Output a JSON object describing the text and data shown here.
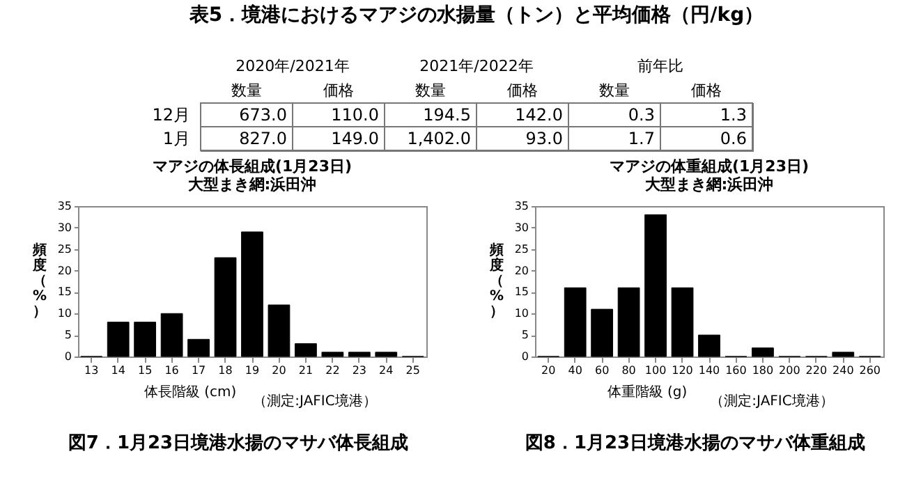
{
  "chart_data": [
    {
      "type": "other",
      "title": "表5．境港におけるマアジの水揚量（トン）と平均価格（円/kg）",
      "categories": [
        "数量",
        "価格",
        "数量",
        "価格",
        "数量",
        "価格"
      ],
      "y_categories": [
        "12月",
        "1月"
      ],
      "cell_labels": [
        [
          "673.0",
          "110.0",
          "194.5",
          "142.0",
          "0.3",
          "1.3"
        ],
        [
          "827.0",
          "149.0",
          "1,402.0",
          "93.0",
          "1.7",
          "0.6"
        ]
      ],
      "annotations": [
        "2020年/2021年",
        "2021年/2022年",
        "前年比"
      ]
    },
    {
      "type": "bar",
      "title": "マアジの体長組成(1月23日)",
      "subtitle": "大型まき網:浜田沖",
      "xlabel": "体長階級 (cm)",
      "ylabel": "頻度（%）",
      "categories": [
        "13",
        "14",
        "15",
        "16",
        "17",
        "18",
        "19",
        "20",
        "21",
        "22",
        "23",
        "24",
        "25"
      ],
      "values": [
        0,
        8,
        8,
        10,
        4,
        23,
        29,
        12,
        3,
        1,
        1,
        1,
        0
      ],
      "color": "#000000",
      "ylim": [
        0,
        35
      ],
      "yticks": [
        0,
        5,
        10,
        15,
        20,
        25,
        30,
        35
      ],
      "annotations": [
        "（測定:JAFIC境港）",
        "図7．1月23日境港水揚のマサバ体長組成"
      ]
    },
    {
      "type": "bar",
      "title": "マアジの体重組成(1月23日)",
      "subtitle": "大型まき網:浜田沖",
      "xlabel": "体重階級 (g)",
      "ylabel": "頻度（%）",
      "categories": [
        "20",
        "40",
        "60",
        "80",
        "100",
        "120",
        "140",
        "160",
        "180",
        "200",
        "220",
        "240",
        "260"
      ],
      "values": [
        0,
        16,
        11,
        16,
        33,
        16,
        5,
        0,
        2,
        0,
        0,
        1,
        0
      ],
      "color": "#000000",
      "ylim": [
        0,
        35
      ],
      "yticks": [
        0,
        5,
        10,
        15,
        20,
        25,
        30,
        35
      ],
      "annotations": [
        "（測定:JAFIC境港）",
        "図8．1月23日境港水揚のマサバ体重組成"
      ]
    }
  ]
}
